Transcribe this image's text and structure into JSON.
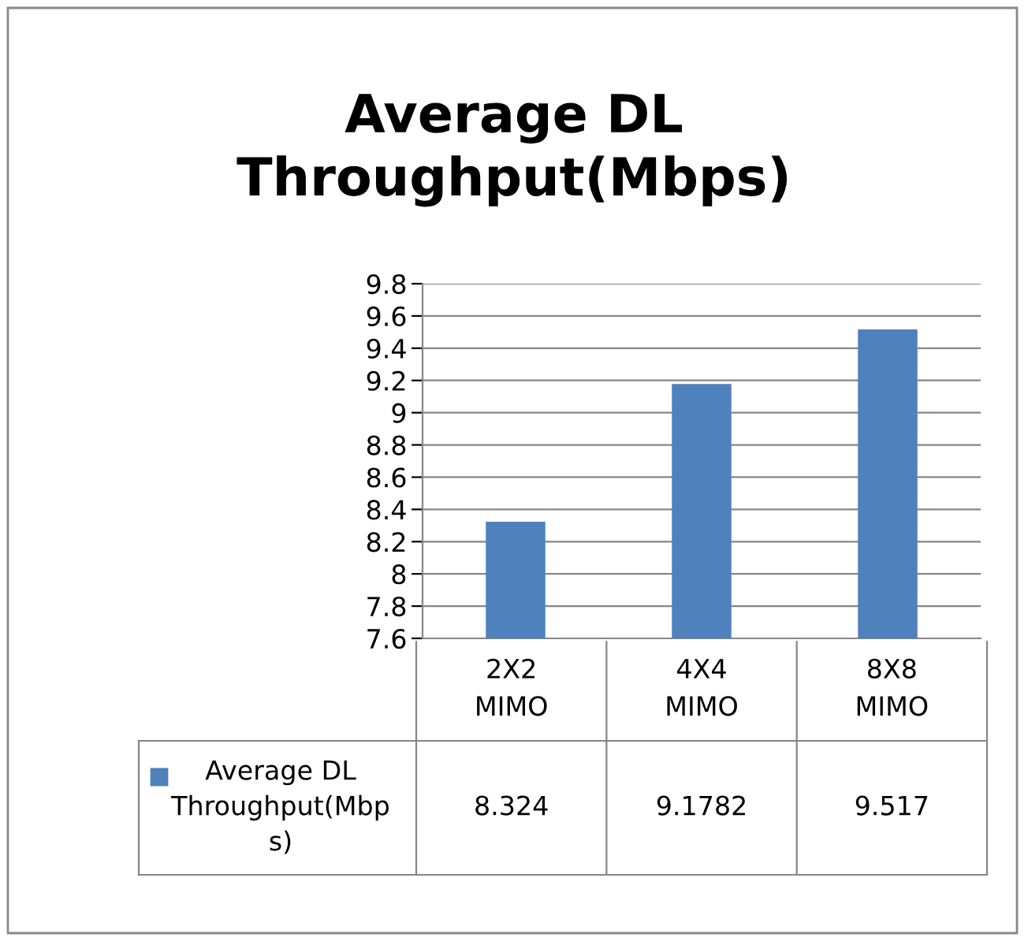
{
  "chart_data": {
    "type": "bar",
    "title": "Average DL Throughput(Mbps)",
    "categories": [
      "2X2 MIMO",
      "4X4 MIMO",
      "8X8 MIMO"
    ],
    "series": [
      {
        "name": "Average DL Throughput(Mbps)",
        "color": "#4f81bd",
        "values": [
          8.324,
          9.1782,
          9.517
        ]
      }
    ],
    "ylim": [
      7.6,
      9.8
    ],
    "yticks": [
      7.6,
      7.8,
      8,
      8.2,
      8.4,
      8.6,
      8.8,
      9,
      9.2,
      9.4,
      9.6,
      9.8
    ],
    "grid": "y",
    "data_labels": true
  }
}
